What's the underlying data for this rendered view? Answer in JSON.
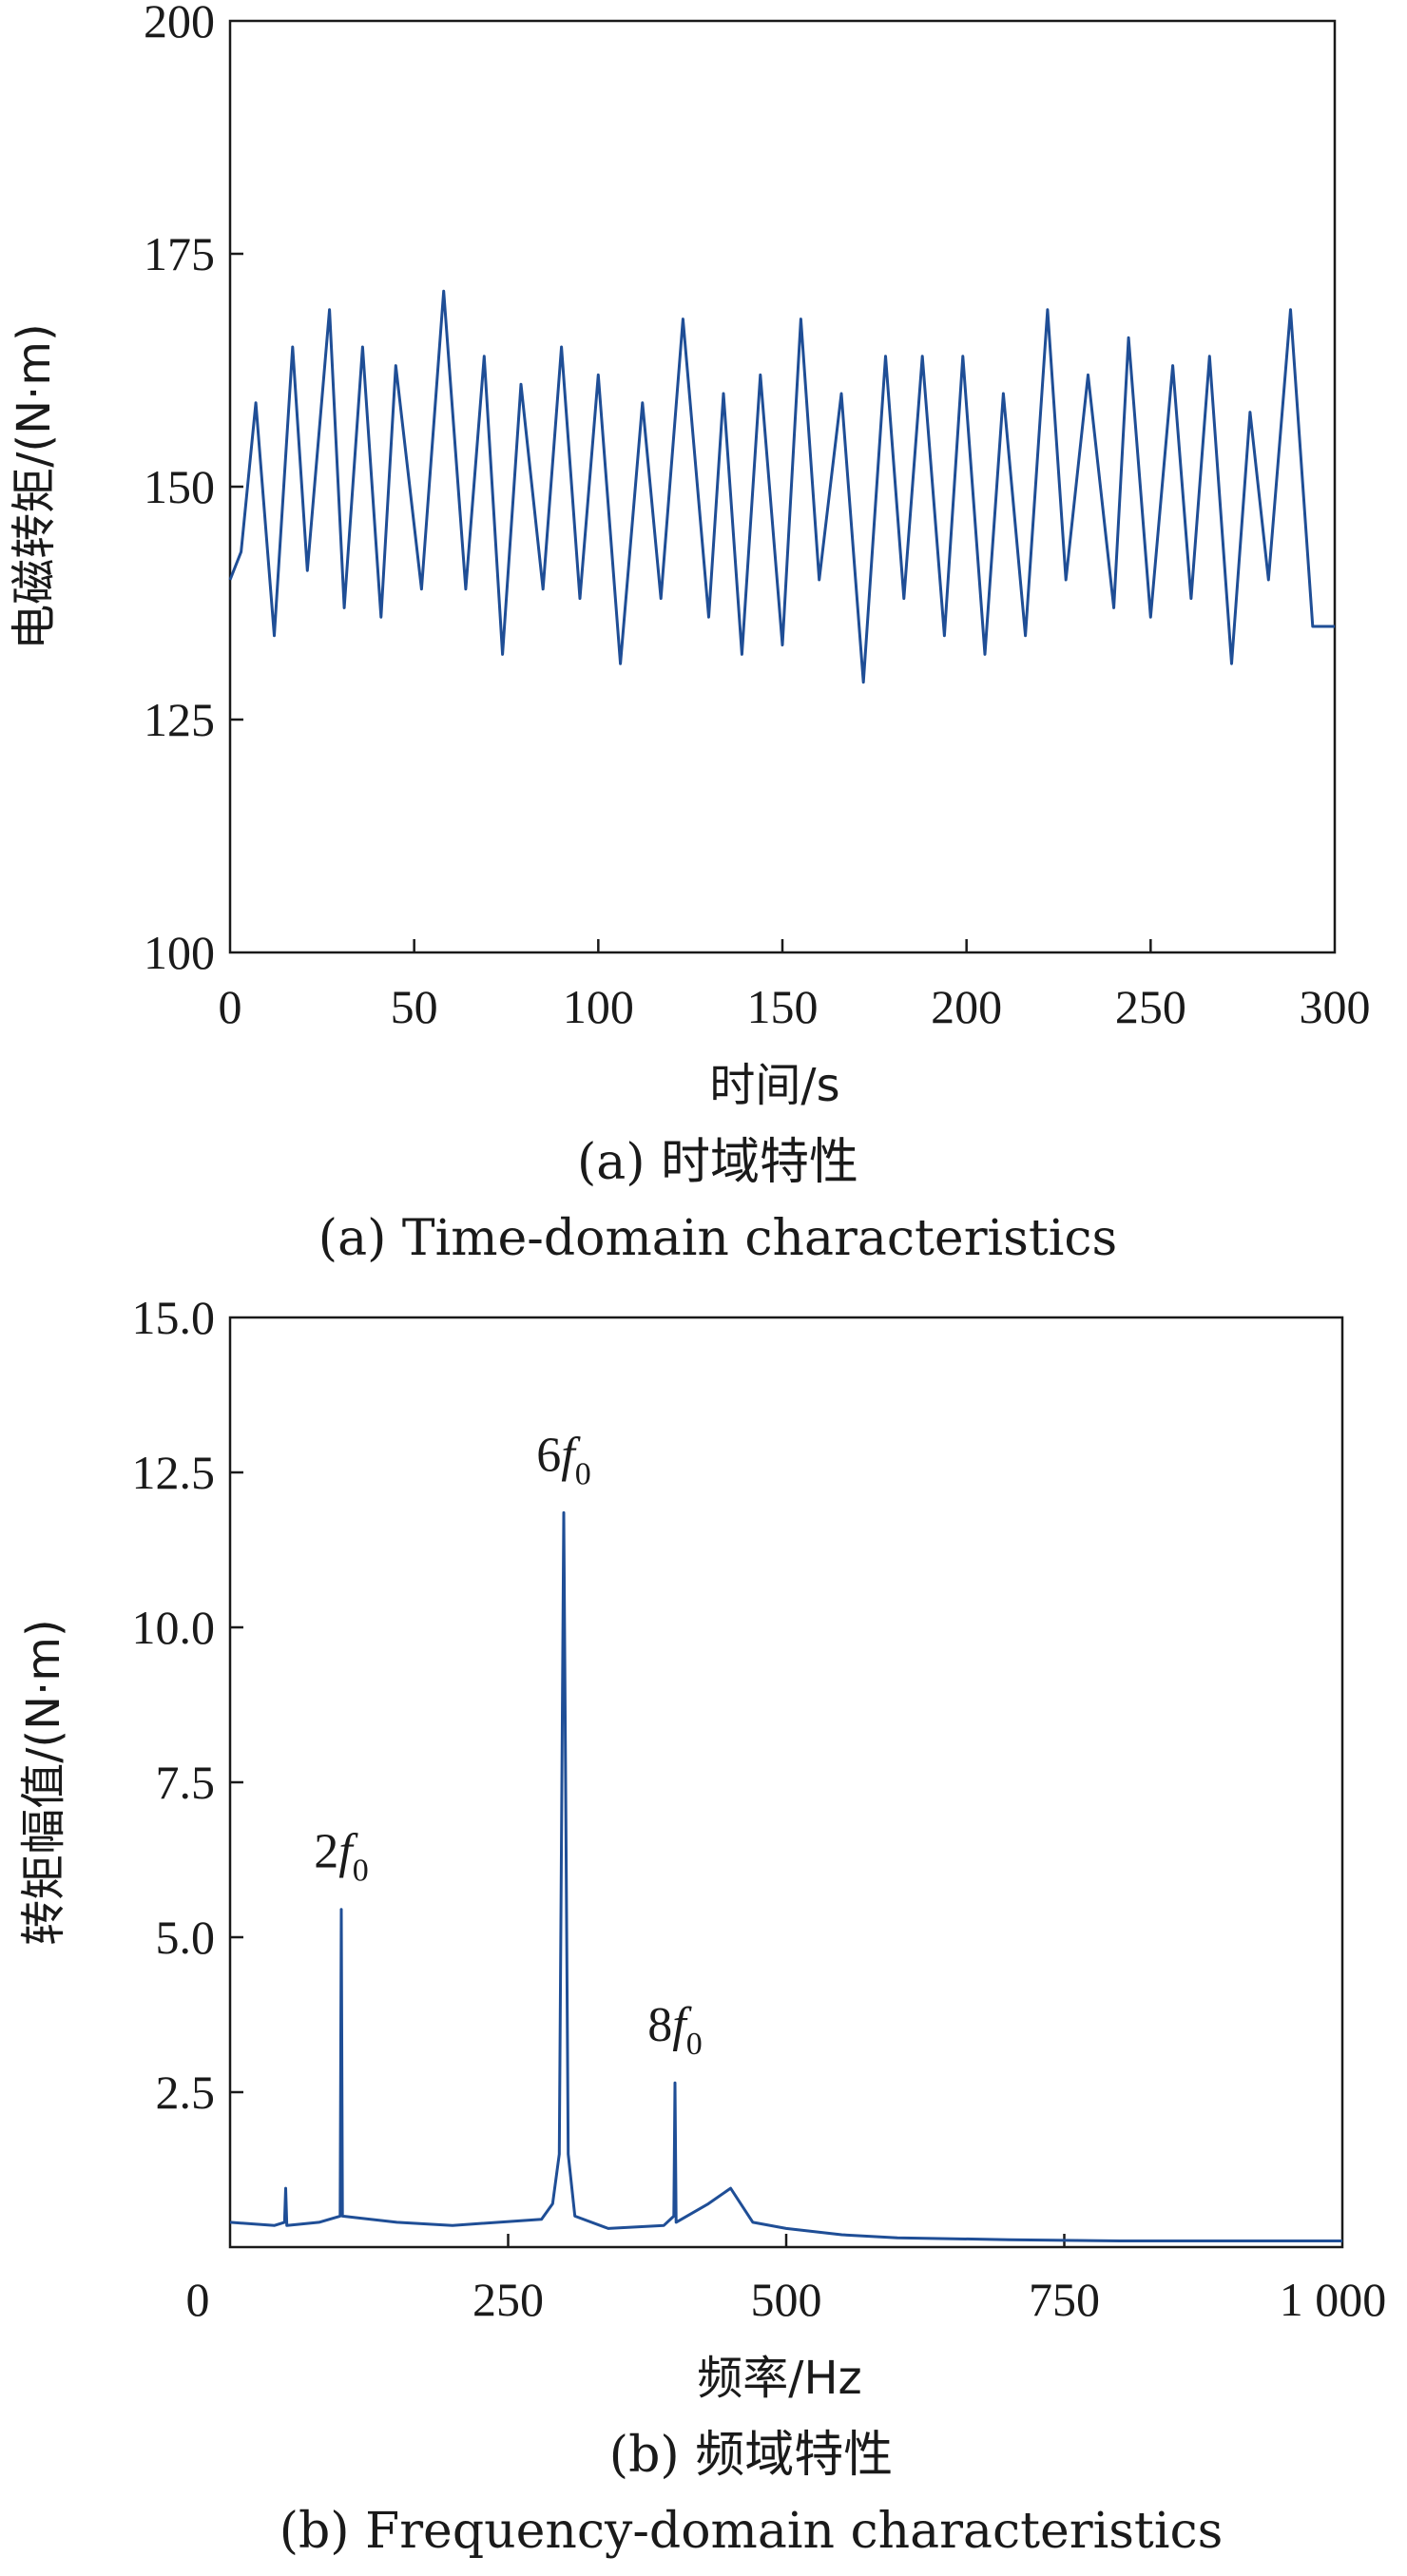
{
  "chart_data": [
    {
      "type": "line",
      "xlabel": "时间/s",
      "ylabel": "电磁转矩/(N·m)",
      "xlim": [
        0,
        300
      ],
      "ylim": [
        100,
        200
      ],
      "xticks": [
        0,
        50,
        100,
        150,
        200,
        250,
        300
      ],
      "yticks": [
        100,
        125,
        150,
        175,
        200
      ],
      "xtick_labels": [
        "0",
        "50",
        "100",
        "150",
        "200",
        "250",
        "300"
      ],
      "ytick_labels": [
        "100",
        "125",
        "150",
        "175",
        "200"
      ],
      "caption_cn": "(a) 时域特性",
      "caption_en": "(a) Time-domain characteristics",
      "grid": false,
      "color": "#1f4e96",
      "x": [
        0,
        3,
        7,
        12,
        17,
        21,
        27,
        31,
        36,
        41,
        45,
        52,
        58,
        64,
        69,
        74,
        79,
        85,
        90,
        95,
        100,
        106,
        112,
        117,
        123,
        130,
        134,
        139,
        144,
        150,
        155,
        160,
        166,
        172,
        178,
        183,
        188,
        194,
        199,
        205,
        210,
        216,
        222,
        227,
        233,
        240,
        244,
        250,
        256,
        261,
        266,
        272,
        277,
        282,
        288,
        294,
        300
      ],
      "y": [
        140,
        143,
        159,
        134,
        165,
        141,
        169,
        137,
        165,
        136,
        163,
        139,
        171,
        139,
        164,
        132,
        161,
        139,
        165,
        138,
        162,
        131,
        159,
        138,
        168,
        136,
        160,
        132,
        162,
        133,
        168,
        140,
        160,
        129,
        164,
        138,
        164,
        134,
        164,
        132,
        160,
        134,
        169,
        140,
        162,
        137,
        166,
        136,
        163,
        138,
        164,
        131,
        158,
        140,
        169,
        135,
        135
      ]
    },
    {
      "type": "line",
      "xlabel": "频率/Hz",
      "ylabel": "转矩幅值/(N·m)",
      "xlim": [
        0,
        1000
      ],
      "ylim": [
        0,
        15
      ],
      "xticks": [
        0,
        250,
        500,
        750,
        1000
      ],
      "yticks": [
        2.5,
        5.0,
        7.5,
        10.0,
        12.5,
        15.0
      ],
      "xtick_labels": [
        "0",
        "250",
        "500",
        "750",
        "1 000"
      ],
      "ytick_labels": [
        "2.5",
        "5.0",
        "7.5",
        "10.0",
        "12.5",
        "15.0"
      ],
      "caption_cn": "(b) 频域特性",
      "caption_en": "(b) Frequency-domain characteristics",
      "grid": false,
      "color": "#1f4e96",
      "x": [
        0,
        40,
        49,
        50,
        51,
        80,
        99,
        100,
        101,
        150,
        200,
        280,
        290,
        296,
        300,
        304,
        310,
        340,
        390,
        399,
        400,
        401,
        430,
        450,
        470,
        500,
        550,
        600,
        700,
        800,
        900,
        1000
      ],
      "y": [
        0.4,
        0.35,
        0.4,
        0.95,
        0.35,
        0.4,
        0.5,
        5.45,
        0.5,
        0.4,
        0.35,
        0.45,
        0.7,
        1.5,
        11.85,
        1.5,
        0.5,
        0.3,
        0.35,
        0.5,
        2.65,
        0.4,
        0.7,
        0.95,
        0.4,
        0.3,
        0.2,
        0.15,
        0.12,
        0.1,
        0.1,
        0.1
      ],
      "annotations": [
        {
          "base": "2",
          "italic": "f",
          "sub": "0",
          "x": 100
        },
        {
          "base": "6",
          "italic": "f",
          "sub": "0",
          "x": 300
        },
        {
          "base": "8",
          "italic": "f",
          "sub": "0",
          "x": 400
        }
      ]
    }
  ]
}
